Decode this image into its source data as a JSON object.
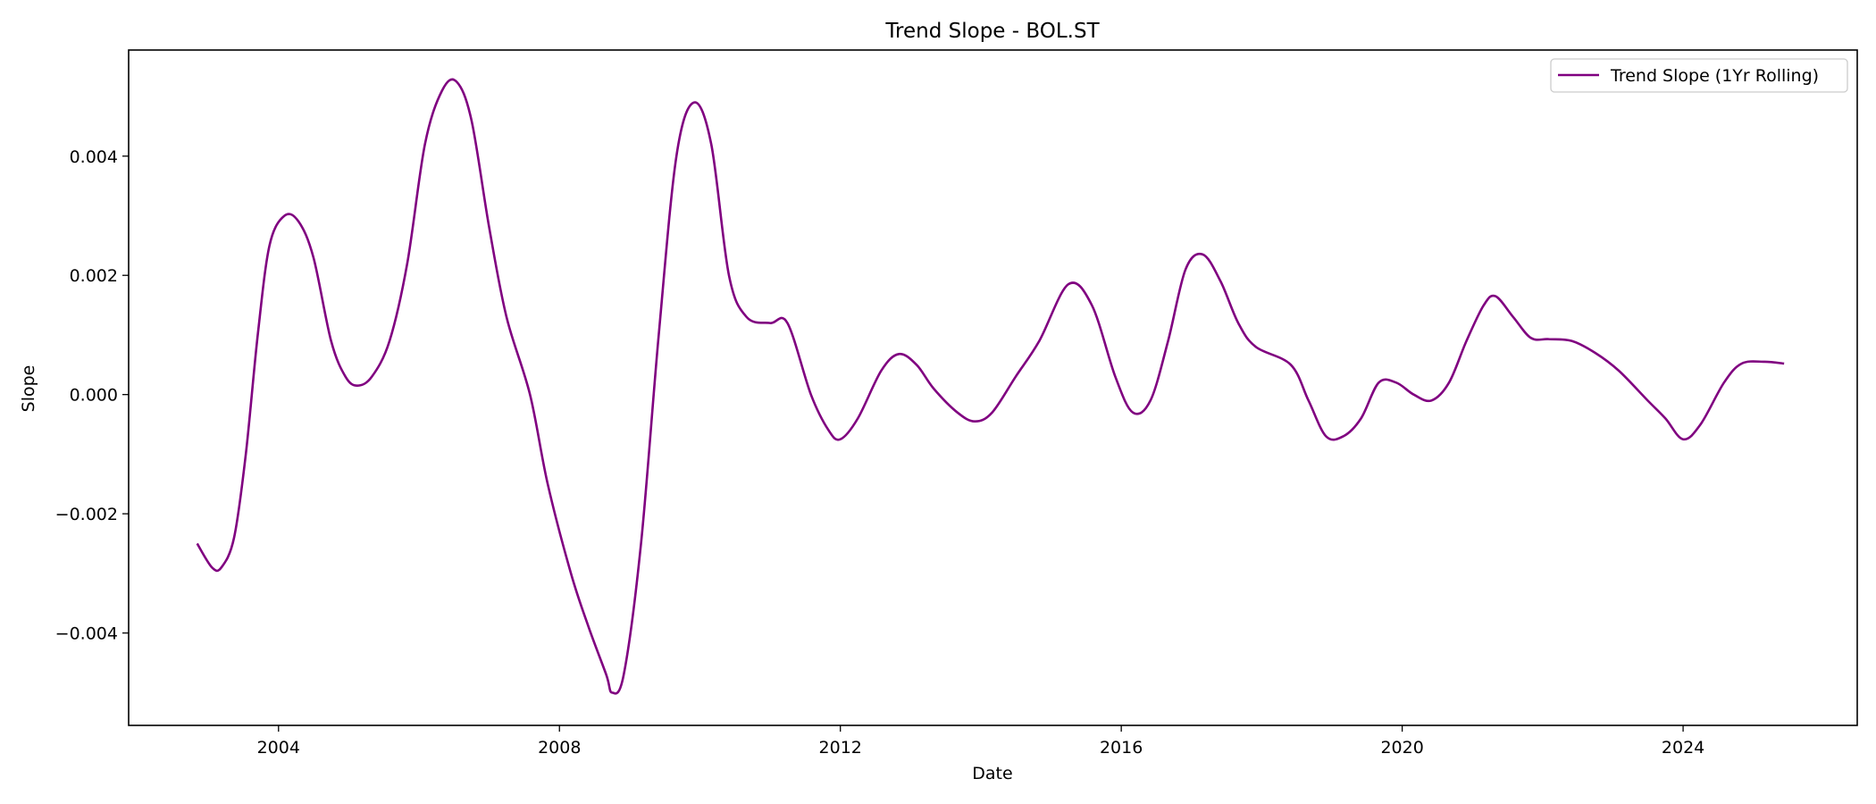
{
  "chart_data": {
    "type": "line",
    "title": "Trend Slope - BOL.ST",
    "xlabel": "Date",
    "ylabel": "Slope",
    "x_ticks": [
      "2004",
      "2008",
      "2012",
      "2016",
      "2020",
      "2024"
    ],
    "y_ticks": [
      "−0.004",
      "−0.002",
      "0.000",
      "0.002",
      "0.004"
    ],
    "xlim": [
      "2001-11-13",
      "2026-06-25"
    ],
    "ylim": [
      -0.00555,
      0.00578
    ],
    "grid": false,
    "legend_position": "top-right",
    "series": [
      {
        "name": "Trend Slope (1Yr Rolling)",
        "color": "#800080",
        "points": [
          [
            "2002-11-04",
            -0.0025
          ],
          [
            "2003-01-20",
            -0.0029
          ],
          [
            "2003-03-10",
            -0.0029
          ],
          [
            "2003-05-15",
            -0.0024
          ],
          [
            "2003-07-15",
            -0.001
          ],
          [
            "2003-09-15",
            0.001
          ],
          [
            "2003-11-15",
            0.0025
          ],
          [
            "2004-02-01",
            0.003
          ],
          [
            "2004-04-15",
            0.0029
          ],
          [
            "2004-07-01",
            0.0023
          ],
          [
            "2004-10-01",
            0.0009
          ],
          [
            "2004-12-15",
            0.0003
          ],
          [
            "2005-02-15",
            0.00015
          ],
          [
            "2005-05-01",
            0.0003
          ],
          [
            "2005-08-01",
            0.0009
          ],
          [
            "2005-11-01",
            0.0022
          ],
          [
            "2006-02-01",
            0.0042
          ],
          [
            "2006-05-01",
            0.0051
          ],
          [
            "2006-07-15",
            0.00525
          ],
          [
            "2006-10-01",
            0.0046
          ],
          [
            "2007-01-01",
            0.0028
          ],
          [
            "2007-04-01",
            0.0013
          ],
          [
            "2007-08-01",
            0.0
          ],
          [
            "2007-11-01",
            -0.0015
          ],
          [
            "2008-03-01",
            -0.003
          ],
          [
            "2008-06-01",
            -0.0039
          ],
          [
            "2008-09-01",
            -0.0047
          ],
          [
            "2008-10-01",
            -0.005
          ],
          [
            "2008-12-01",
            -0.0047
          ],
          [
            "2009-03-01",
            -0.0025
          ],
          [
            "2009-06-01",
            0.001
          ],
          [
            "2009-09-01",
            0.004
          ],
          [
            "2009-12-01",
            0.0049
          ],
          [
            "2010-03-01",
            0.0042
          ],
          [
            "2010-06-01",
            0.002
          ],
          [
            "2010-09-01",
            0.0013
          ],
          [
            "2011-01-01",
            0.0012
          ],
          [
            "2011-04-01",
            0.0012
          ],
          [
            "2011-08-01",
            0.0
          ],
          [
            "2011-11-01",
            -0.0006
          ],
          [
            "2012-01-01",
            -0.00075
          ],
          [
            "2012-04-01",
            -0.0004
          ],
          [
            "2012-08-01",
            0.0004
          ],
          [
            "2012-11-01",
            0.00068
          ],
          [
            "2013-02-01",
            0.0005
          ],
          [
            "2013-05-01",
            0.0001
          ],
          [
            "2013-09-01",
            -0.0003
          ],
          [
            "2013-12-01",
            -0.00045
          ],
          [
            "2014-03-01",
            -0.0003
          ],
          [
            "2014-07-01",
            0.0003
          ],
          [
            "2014-11-01",
            0.0009
          ],
          [
            "2015-04-01",
            0.00185
          ],
          [
            "2015-08-01",
            0.0015
          ],
          [
            "2015-12-01",
            0.0003
          ],
          [
            "2016-03-01",
            -0.0003
          ],
          [
            "2016-06-01",
            -0.0001
          ],
          [
            "2016-09-01",
            0.0009
          ],
          [
            "2016-12-01",
            0.0021
          ],
          [
            "2017-03-01",
            0.00235
          ],
          [
            "2017-06-01",
            0.0019
          ],
          [
            "2017-09-01",
            0.0012
          ],
          [
            "2017-12-01",
            0.0008
          ],
          [
            "2018-06-01",
            0.0005
          ],
          [
            "2018-09-01",
            -0.0001
          ],
          [
            "2018-12-01",
            -0.0007
          ],
          [
            "2019-03-01",
            -0.0007
          ],
          [
            "2019-06-01",
            -0.0004
          ],
          [
            "2019-09-01",
            0.0002
          ],
          [
            "2019-12-01",
            0.0002
          ],
          [
            "2020-03-01",
            0.0
          ],
          [
            "2020-06-01",
            -0.0001
          ],
          [
            "2020-09-01",
            0.0002
          ],
          [
            "2020-12-01",
            0.0009
          ],
          [
            "2021-03-01",
            0.0015
          ],
          [
            "2021-05-01",
            0.00165
          ],
          [
            "2021-08-01",
            0.0013
          ],
          [
            "2021-11-01",
            0.00095
          ],
          [
            "2022-02-01",
            0.00093
          ],
          [
            "2022-06-01",
            0.0009
          ],
          [
            "2022-10-01",
            0.0007
          ],
          [
            "2023-02-01",
            0.0004
          ],
          [
            "2023-07-01",
            -0.0001
          ],
          [
            "2023-10-01",
            -0.0004
          ],
          [
            "2024-01-01",
            -0.00075
          ],
          [
            "2024-04-01",
            -0.0005
          ],
          [
            "2024-08-01",
            0.0002
          ],
          [
            "2024-11-01",
            0.00052
          ],
          [
            "2025-03-01",
            0.00055
          ],
          [
            "2025-06-10",
            0.00052
          ]
        ]
      }
    ]
  }
}
